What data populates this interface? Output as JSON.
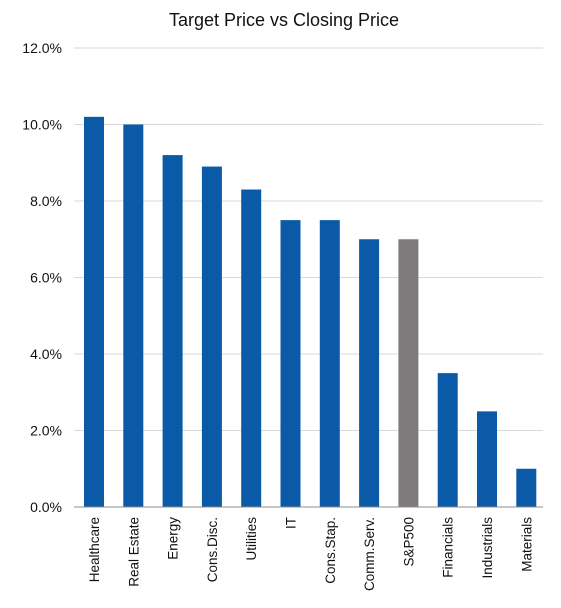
{
  "chart_data": {
    "type": "bar",
    "title": "Target Price vs Closing Price",
    "xlabel": "",
    "ylabel": "",
    "categories": [
      "Healthcare",
      "Real Estate",
      "Energy",
      "Cons.Disc.",
      "Utilities",
      "IT",
      "Cons.Stap.",
      "Comm.Serv.",
      "S&P500",
      "Financials",
      "Industrials",
      "Materials"
    ],
    "values": [
      10.2,
      10.0,
      9.2,
      8.9,
      8.3,
      7.5,
      7.5,
      7.0,
      7.0,
      3.5,
      2.5,
      1.0
    ],
    "value_unit": "%",
    "ylim": [
      0,
      12
    ],
    "yticks": [
      0,
      2,
      4,
      6,
      8,
      10,
      12
    ],
    "ytick_labels": [
      "0.0%",
      "2.0%",
      "4.0%",
      "6.0%",
      "8.0%",
      "10.0%",
      "12.0%"
    ],
    "grid": true,
    "legend": "none",
    "colors": {
      "default_bar": "#0a5aa8",
      "highlight_bar": "#7f7b7c",
      "highlight_category": "S&P500"
    }
  }
}
